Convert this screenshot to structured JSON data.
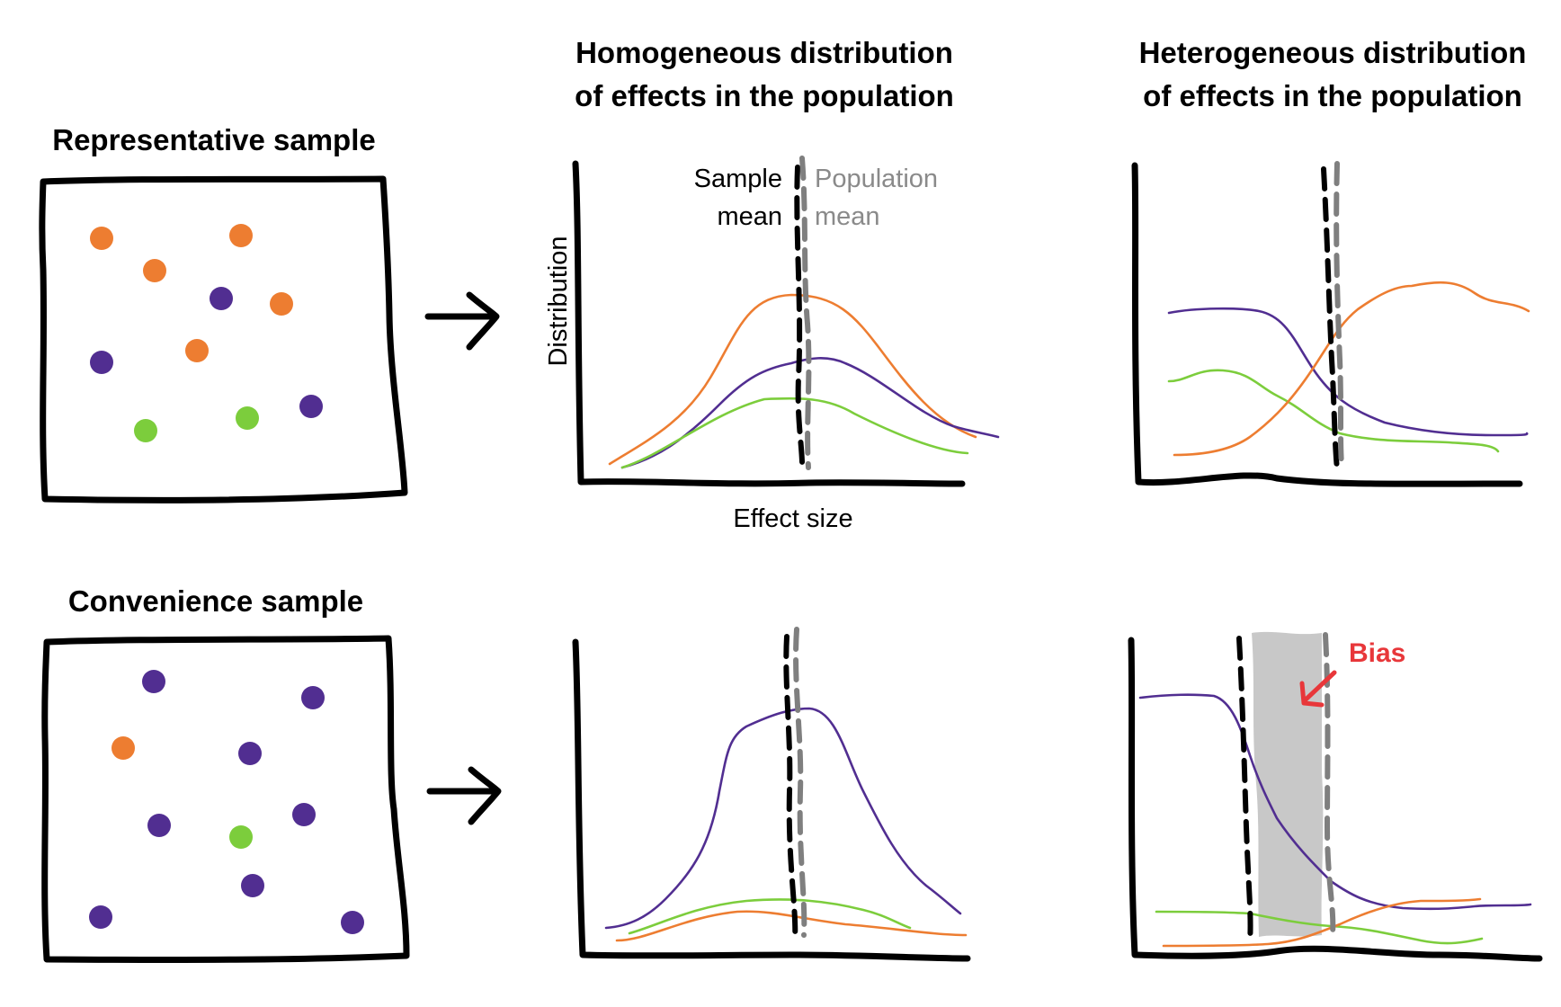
{
  "headings": {
    "homogeneous_line1": "Homogeneous distribution",
    "homogeneous_line2": "of effects in the population",
    "heterogeneous_line1": "Heterogeneous distribution",
    "heterogeneous_line2": "of effects in the population"
  },
  "samples": {
    "representative": "Representative sample",
    "convenience": "Convenience sample"
  },
  "axis": {
    "ylabel": "Distribution",
    "xlabel": "Effect size"
  },
  "legend": {
    "sample_line1": "Sample",
    "sample_line2": "mean",
    "population_line1": "Population",
    "population_line2": "mean"
  },
  "bias_label": "Bias",
  "colors": {
    "orange": "#ed7d31",
    "purple": "#512e91",
    "green": "#7ccd3c",
    "black": "#000000",
    "gray": "#7f7f7f",
    "bias_red": "#e8373a",
    "bias_band": "#c8c8c8"
  },
  "icons": {
    "arrow": "right-arrow-icon"
  },
  "representative_dots": [
    {
      "group": "orange"
    },
    {
      "group": "orange"
    },
    {
      "group": "orange"
    },
    {
      "group": "orange"
    },
    {
      "group": "orange"
    },
    {
      "group": "purple"
    },
    {
      "group": "purple"
    },
    {
      "group": "purple"
    },
    {
      "group": "green"
    },
    {
      "group": "green"
    }
  ],
  "convenience_dots": [
    {
      "group": "purple"
    },
    {
      "group": "purple"
    },
    {
      "group": "purple"
    },
    {
      "group": "purple"
    },
    {
      "group": "purple"
    },
    {
      "group": "purple"
    },
    {
      "group": "purple"
    },
    {
      "group": "purple"
    },
    {
      "group": "orange"
    },
    {
      "group": "green"
    }
  ]
}
